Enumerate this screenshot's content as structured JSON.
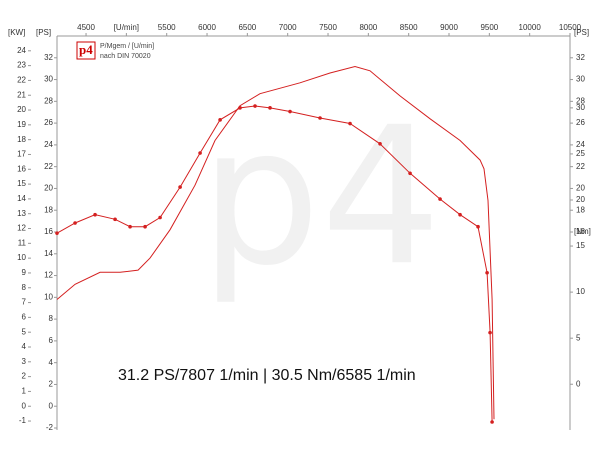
{
  "chart_data": {
    "type": "line",
    "logo": "p4",
    "legend_lines": [
      "P/Mgem / [U/min]",
      "nach DIN 70020"
    ],
    "watermark": "p4",
    "annotation": "31.2 PS/7807 1/min | 30.5 Nm/6585 1/min",
    "xlim": [
      4140,
      10500
    ],
    "xticks": [
      4500,
      {
        "value": 5000,
        "label": "[U/min]"
      },
      5500,
      6000,
      6500,
      7000,
      7500,
      8000,
      8500,
      9000,
      9500,
      10000,
      10500
    ],
    "y_label": "[PS]",
    "ylim": [
      -2,
      34
    ],
    "yticks": [
      -2,
      0,
      2,
      4,
      6,
      8,
      10,
      12,
      14,
      16,
      18,
      20,
      22,
      24,
      26,
      28,
      30,
      32
    ],
    "y_right_label": "[PS]",
    "y_right_ticks": [
      16,
      18,
      20,
      22,
      24,
      26,
      28,
      30,
      32
    ],
    "y3_label": "[KW]",
    "y3lim": [
      -1.47,
      25
    ],
    "y3ticks": [
      -1,
      0,
      1,
      2,
      3,
      4,
      5,
      6,
      7,
      8,
      9,
      10,
      11,
      12,
      13,
      14,
      15,
      16,
      17,
      18,
      19,
      20,
      21,
      22,
      23,
      24
    ],
    "y2_label": "[Nm]",
    "y2lim": [
      -4.75,
      37.8
    ],
    "y2ticks": [
      0,
      5,
      10,
      15,
      20,
      25,
      30
    ],
    "series": [
      {
        "color": "#d42020",
        "x": [
          4140,
          4364,
          4674,
          4922,
          5145,
          5293,
          5541,
          5851,
          6099,
          6409,
          6657,
          7153,
          7525,
          7835,
          8021,
          8393,
          8765,
          9137,
          9385,
          9434,
          9484,
          9534,
          9558
        ],
        "values": [
          9.8,
          11.2,
          12.3,
          12.3,
          12.5,
          13.6,
          16.2,
          20.3,
          24.4,
          27.6,
          28.7,
          29.7,
          30.6,
          31.2,
          30.8,
          28.5,
          26.4,
          24.4,
          22.6,
          21.8,
          18.9,
          9.8,
          -1.2
        ]
      },
      {
        "color": "#d42020",
        "axis": "y2",
        "markers": true,
        "x": [
          4140,
          4364,
          4612,
          4860,
          5046,
          5232,
          5418,
          5666,
          5914,
          6162,
          6409,
          6595,
          6781,
          7029,
          7401,
          7773,
          8145,
          8517,
          8889,
          9137,
          9360,
          9472,
          9509,
          9534
        ],
        "values": [
          16.4,
          17.5,
          18.4,
          17.9,
          17.1,
          17.1,
          18.1,
          21.4,
          25.1,
          28.7,
          30.0,
          30.2,
          30.0,
          29.6,
          28.9,
          28.3,
          26.1,
          22.9,
          20.1,
          18.4,
          17.1,
          12.1,
          5.6,
          -4.1
        ]
      }
    ]
  }
}
